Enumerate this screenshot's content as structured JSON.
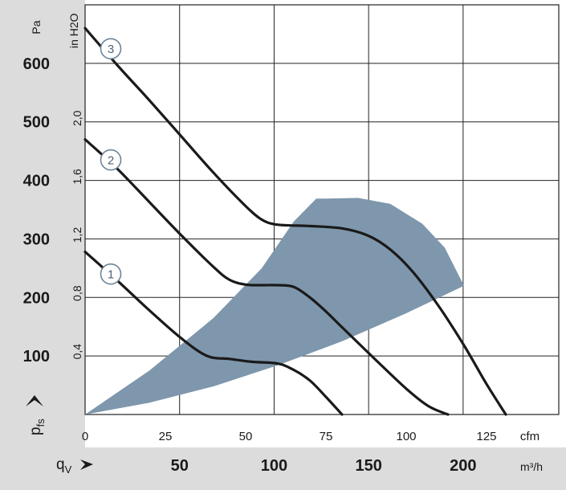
{
  "chart_data": {
    "type": "line",
    "axes": {
      "left_primary": {
        "unit": "Pa",
        "ticks": [
          100,
          200,
          300,
          400,
          500,
          600
        ],
        "range": [
          0,
          700
        ]
      },
      "left_secondary": {
        "unit": "in H2O",
        "ticks": [
          "0,4",
          "0,8",
          "1,2",
          "1,6",
          "2,0"
        ],
        "tick_values": [
          0.4,
          0.8,
          1.2,
          1.6,
          2.0
        ]
      },
      "x_primary": {
        "unit": "cfm",
        "ticks": [
          0,
          25,
          50,
          75,
          100,
          125
        ],
        "range": [
          0,
          147.5
        ]
      },
      "x_secondary": {
        "unit": "m³/h",
        "ticks": [
          50,
          100,
          150,
          200
        ]
      },
      "y_axis_symbol": {
        "main": "p",
        "sub": "fs"
      },
      "x_axis_symbol": {
        "main": "q",
        "sub": "V"
      }
    },
    "grid": true,
    "series": [
      {
        "marker": "3",
        "x": [
          0,
          10,
          20,
          30,
          40,
          50,
          55,
          59,
          64,
          70,
          80,
          88,
          95,
          102,
          110,
          118,
          125,
          131
        ],
        "y": [
          660,
          597,
          537,
          475,
          413,
          356,
          333,
          325,
          323,
          322,
          318,
          306,
          282,
          244,
          186,
          118,
          52,
          0
        ]
      },
      {
        "marker": "2",
        "x": [
          0,
          10,
          20,
          30,
          40,
          45,
          50,
          55,
          60,
          65,
          70,
          75,
          80,
          90,
          100,
          107,
          113
        ],
        "y": [
          470,
          420,
          363,
          306,
          252,
          230,
          222,
          221,
          221,
          218,
          200,
          176,
          149,
          96,
          44,
          14,
          0
        ]
      },
      {
        "marker": "1",
        "x": [
          0,
          10,
          20,
          30,
          38,
          45,
          52,
          60,
          65,
          70,
          75,
          80
        ],
        "y": [
          278,
          229,
          178,
          130,
          100,
          95,
          90,
          87,
          76,
          58,
          30,
          0
        ]
      }
    ],
    "operating_region": {
      "color": "#7e97ad",
      "upper": {
        "x": [
          0,
          20,
          40,
          55,
          65,
          72,
          75,
          85,
          95,
          105,
          112,
          118
        ],
        "y": [
          0,
          75,
          165,
          250,
          330,
          369,
          369,
          370,
          360,
          326,
          285,
          220
        ]
      },
      "lower": {
        "x": [
          118,
          100,
          80,
          60,
          40,
          20,
          0
        ],
        "y": [
          220,
          173,
          125,
          84,
          48,
          20,
          0
        ]
      }
    }
  }
}
